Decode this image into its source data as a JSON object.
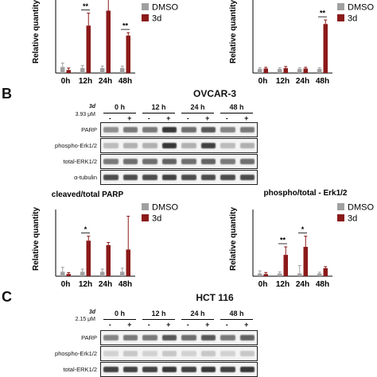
{
  "legend": {
    "dmso": "DMSO",
    "treated": "3d",
    "dmso_color": "#a0a0a0",
    "treated_color": "#8b1a1a"
  },
  "panel_a": {
    "charts": [
      {
        "type": "bar",
        "ylabel": "Relative quantity",
        "categories": [
          "0h",
          "12h",
          "24h",
          "48h"
        ],
        "series": [
          {
            "name": "DMSO",
            "values": [
              1.2,
              1.0,
              1.0,
              1.0
            ],
            "errors": [
              0.8,
              0.5,
              0.4,
              0.4
            ]
          },
          {
            "name": "3d",
            "values": [
              0.6,
              9.5,
              12.5,
              7.5
            ],
            "errors": [
              0.4,
              2.5,
              3.5,
              0.6
            ]
          }
        ],
        "annotations": [
          {
            "category": "12h",
            "label": "**"
          },
          {
            "category": "48h",
            "label": "**"
          }
        ]
      },
      {
        "type": "bar",
        "ylabel": "Relative quantity",
        "categories": [
          "0h",
          "12h",
          "24h",
          "48h"
        ],
        "series": [
          {
            "name": "DMSO",
            "values": [
              1.0,
              1.0,
              1.0,
              1.0
            ],
            "errors": [
              0.3,
              0.3,
              0.3,
              0.3
            ]
          },
          {
            "name": "3d",
            "values": [
              1.1,
              1.2,
              1.1,
              12.0
            ],
            "errors": [
              0.3,
              0.4,
              0.3,
              1.0
            ]
          }
        ],
        "annotations": [
          {
            "category": "48h",
            "label": "**"
          }
        ]
      }
    ]
  },
  "panel_b": {
    "label": "B",
    "title": "OVCAR-3",
    "treatment": "3d",
    "concentration": "3.93 μM",
    "timepoints": [
      "0 h",
      "12 h",
      "24 h",
      "48 h"
    ],
    "signs": [
      "-",
      "+",
      "-",
      "+",
      "-",
      "+",
      "-",
      "+"
    ],
    "rows": [
      "PARP",
      "phospho-Erk1/2",
      "total-ERK1/2",
      "α-tubulin"
    ],
    "charts": [
      {
        "type": "bar",
        "title": "cleaved/total PARP",
        "ylabel": "Relative quantity",
        "categories": [
          "0h",
          "12h",
          "24h",
          "48h"
        ],
        "ylim": [
          0,
          15
        ],
        "series": [
          {
            "name": "DMSO",
            "values": [
              1.0,
              1.0,
              1.0,
              1.0
            ],
            "errors": [
              1.0,
              0.6,
              0.6,
              0.8
            ]
          },
          {
            "name": "3d",
            "values": [
              0.5,
              8.0,
              7.0,
              6.0
            ],
            "errors": [
              0.3,
              1.0,
              0.6,
              7.5
            ]
          }
        ],
        "annotations": [
          {
            "category": "12h",
            "label": "*"
          }
        ]
      },
      {
        "type": "bar",
        "title": "phospho/total - Erk1/2",
        "ylabel": "Relative quantity",
        "categories": [
          "0h",
          "12h",
          "24h",
          "48h"
        ],
        "ylim": [
          0,
          25
        ],
        "series": [
          {
            "name": "DMSO",
            "values": [
              1.0,
              1.0,
              1.0,
              1.0
            ],
            "errors": [
              1.0,
              0.6,
              3.0,
              0.5
            ]
          },
          {
            "name": "3d",
            "values": [
              0.8,
              8.0,
              11.0,
              3.0
            ],
            "errors": [
              0.6,
              3.0,
              4.0,
              0.6
            ]
          }
        ],
        "annotations": [
          {
            "category": "12h",
            "label": "**"
          },
          {
            "category": "24h",
            "label": "*"
          }
        ]
      }
    ]
  },
  "panel_c": {
    "label": "C",
    "title": "HCT 116",
    "treatment": "3d",
    "concentration": "2.15 μM",
    "timepoints": [
      "0 h",
      "12 h",
      "24 h",
      "48 h"
    ],
    "signs": [
      "-",
      "+",
      "-",
      "+",
      "-",
      "+",
      "-",
      "+"
    ],
    "rows": [
      "PARP",
      "phospho-Erk1/2",
      "total-ERK1/2"
    ]
  }
}
